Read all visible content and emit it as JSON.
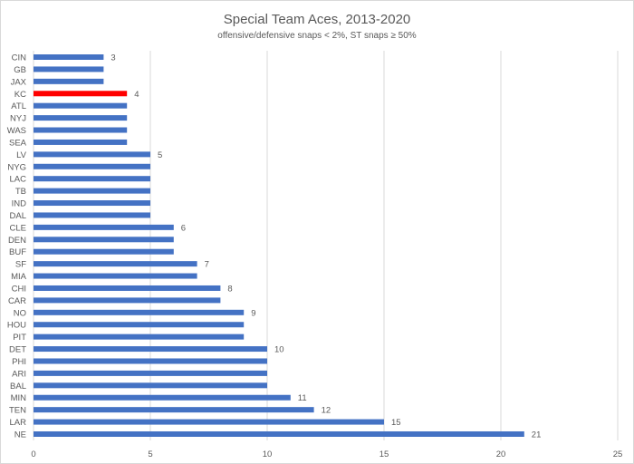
{
  "chart_data": {
    "type": "bar",
    "orientation": "horizontal",
    "title": "Special Team Aces, 2013-2020",
    "subtitle": "offensive/defensive snaps < 2%, ST snaps ≥ 50%",
    "xlabel": "",
    "ylabel": "",
    "xlim": [
      0,
      25
    ],
    "xticks": [
      0,
      5,
      10,
      15,
      20,
      25
    ],
    "grid": true,
    "categories": [
      "CIN",
      "GB",
      "JAX",
      "KC",
      "ATL",
      "NYJ",
      "WAS",
      "SEA",
      "LV",
      "NYG",
      "LAC",
      "TB",
      "IND",
      "DAL",
      "CLE",
      "DEN",
      "BUF",
      "SF",
      "MIA",
      "CHI",
      "CAR",
      "NO",
      "HOU",
      "PIT",
      "DET",
      "PHI",
      "ARI",
      "BAL",
      "MIN",
      "TEN",
      "LAR",
      "NE"
    ],
    "values": [
      3,
      3,
      3,
      4,
      4,
      4,
      4,
      4,
      5,
      5,
      5,
      5,
      5,
      5,
      6,
      6,
      6,
      7,
      7,
      8,
      8,
      9,
      9,
      9,
      10,
      10,
      10,
      10,
      11,
      12,
      15,
      21
    ],
    "data_labels_shown_for": [
      "CIN",
      "KC",
      "LV",
      "CLE",
      "SF",
      "CHI",
      "NO",
      "DET",
      "MIN",
      "TEN",
      "LAR",
      "NE"
    ],
    "highlight": "KC",
    "colors": {
      "bar": "#4472c4",
      "highlight": "#ff0000",
      "grid": "#d9d9d9"
    }
  }
}
